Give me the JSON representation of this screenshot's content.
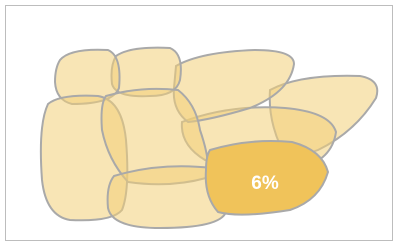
{
  "highlighted_region": {
    "label": "6%"
  }
}
